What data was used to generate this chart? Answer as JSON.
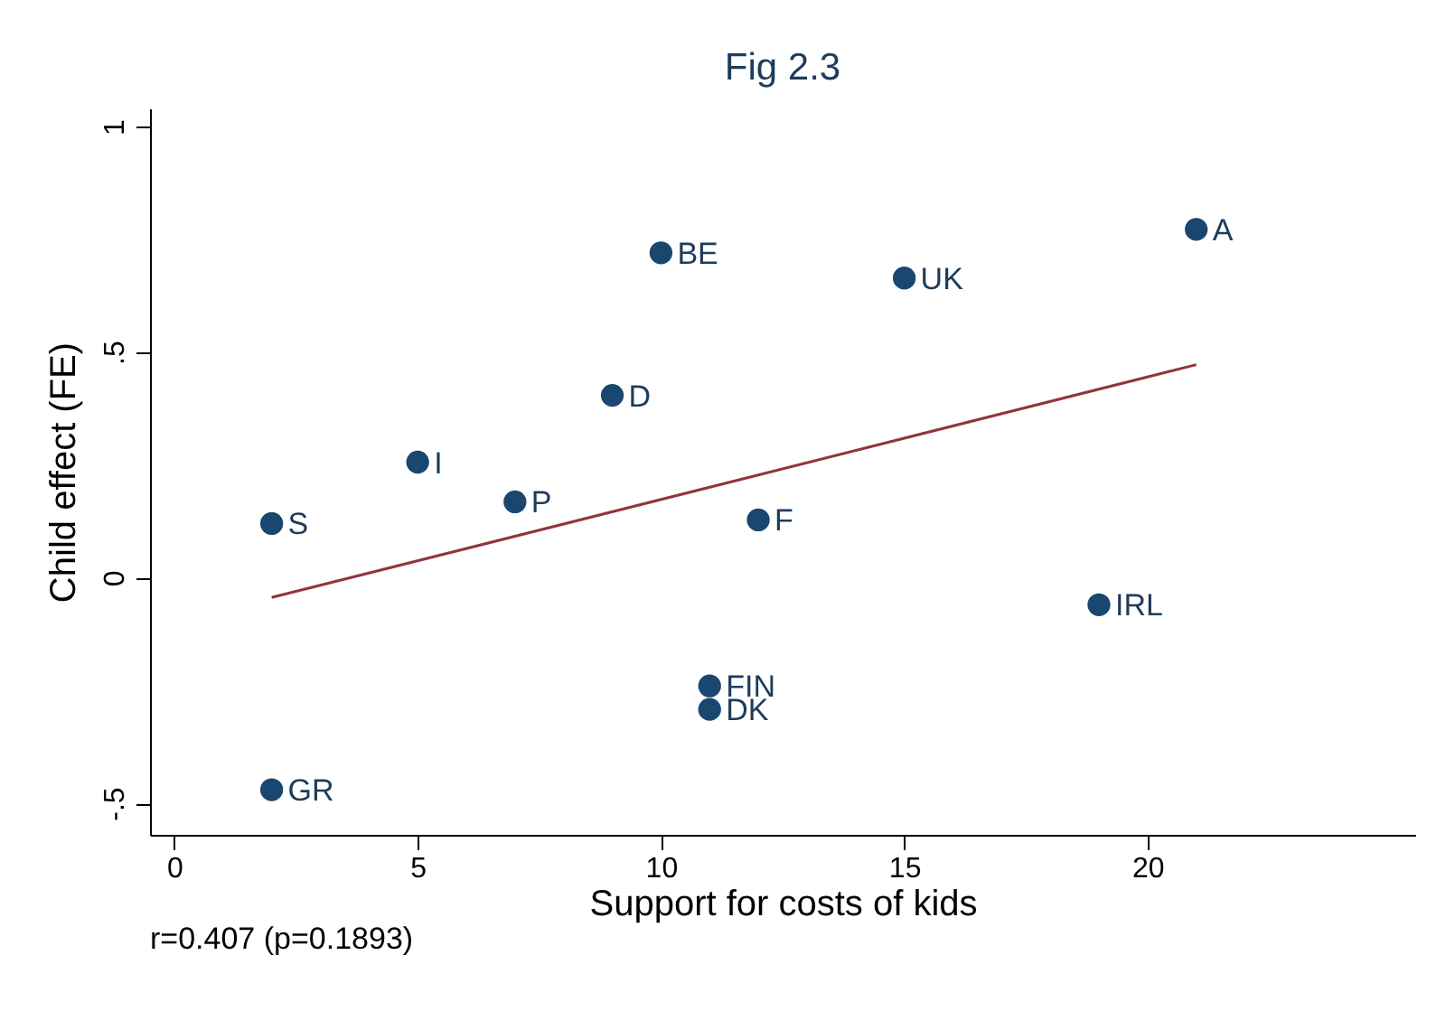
{
  "chart_data": {
    "type": "scatter",
    "title": "Fig 2.3",
    "xlabel": "Support for costs of kids",
    "ylabel": "Child effect (FE)",
    "grid": false,
    "legend": false,
    "xlim": [
      -0.5,
      25.5
    ],
    "xticks": [
      0,
      5,
      10,
      15,
      20
    ],
    "ylim": [
      -0.57,
      1.04
    ],
    "yticks": [
      {
        "value": -0.5,
        "label": "-.5"
      },
      {
        "value": 0,
        "label": "0"
      },
      {
        "value": 0.5,
        "label": ".5"
      },
      {
        "value": 1,
        "label": "1"
      }
    ],
    "series": [
      {
        "marker": "circle",
        "color": "#1a476f",
        "x": [
          2,
          2,
          5,
          7,
          9,
          10,
          12,
          11,
          11,
          15,
          19,
          21
        ],
        "values": [
          0.12,
          -0.47,
          0.256,
          0.168,
          0.404,
          0.72,
          0.128,
          -0.24,
          -0.292,
          0.664,
          -0.06,
          0.772
        ]
      },
      {
        "type": "line",
        "color": "#90353b",
        "x": [
          2,
          21
        ],
        "values": [
          -0.044,
          0.472
        ]
      }
    ],
    "annotations": [
      {
        "text": "S",
        "x": 2,
        "y": 0.12
      },
      {
        "text": "GR",
        "x": 2,
        "y": -0.47
      },
      {
        "text": "I",
        "x": 5,
        "y": 0.256
      },
      {
        "text": "P",
        "x": 7,
        "y": 0.168
      },
      {
        "text": "D",
        "x": 9,
        "y": 0.404
      },
      {
        "text": "BE",
        "x": 10,
        "y": 0.72
      },
      {
        "text": "F",
        "x": 12,
        "y": 0.128
      },
      {
        "text": "FIN",
        "x": 11,
        "y": -0.24
      },
      {
        "text": "DK",
        "x": 11,
        "y": -0.292
      },
      {
        "text": "UK",
        "x": 15,
        "y": 0.664
      },
      {
        "text": "IRL",
        "x": 19,
        "y": -0.06
      },
      {
        "text": "A",
        "x": 21,
        "y": 0.772
      },
      "r=0.407 (p=0.1893)"
    ]
  }
}
